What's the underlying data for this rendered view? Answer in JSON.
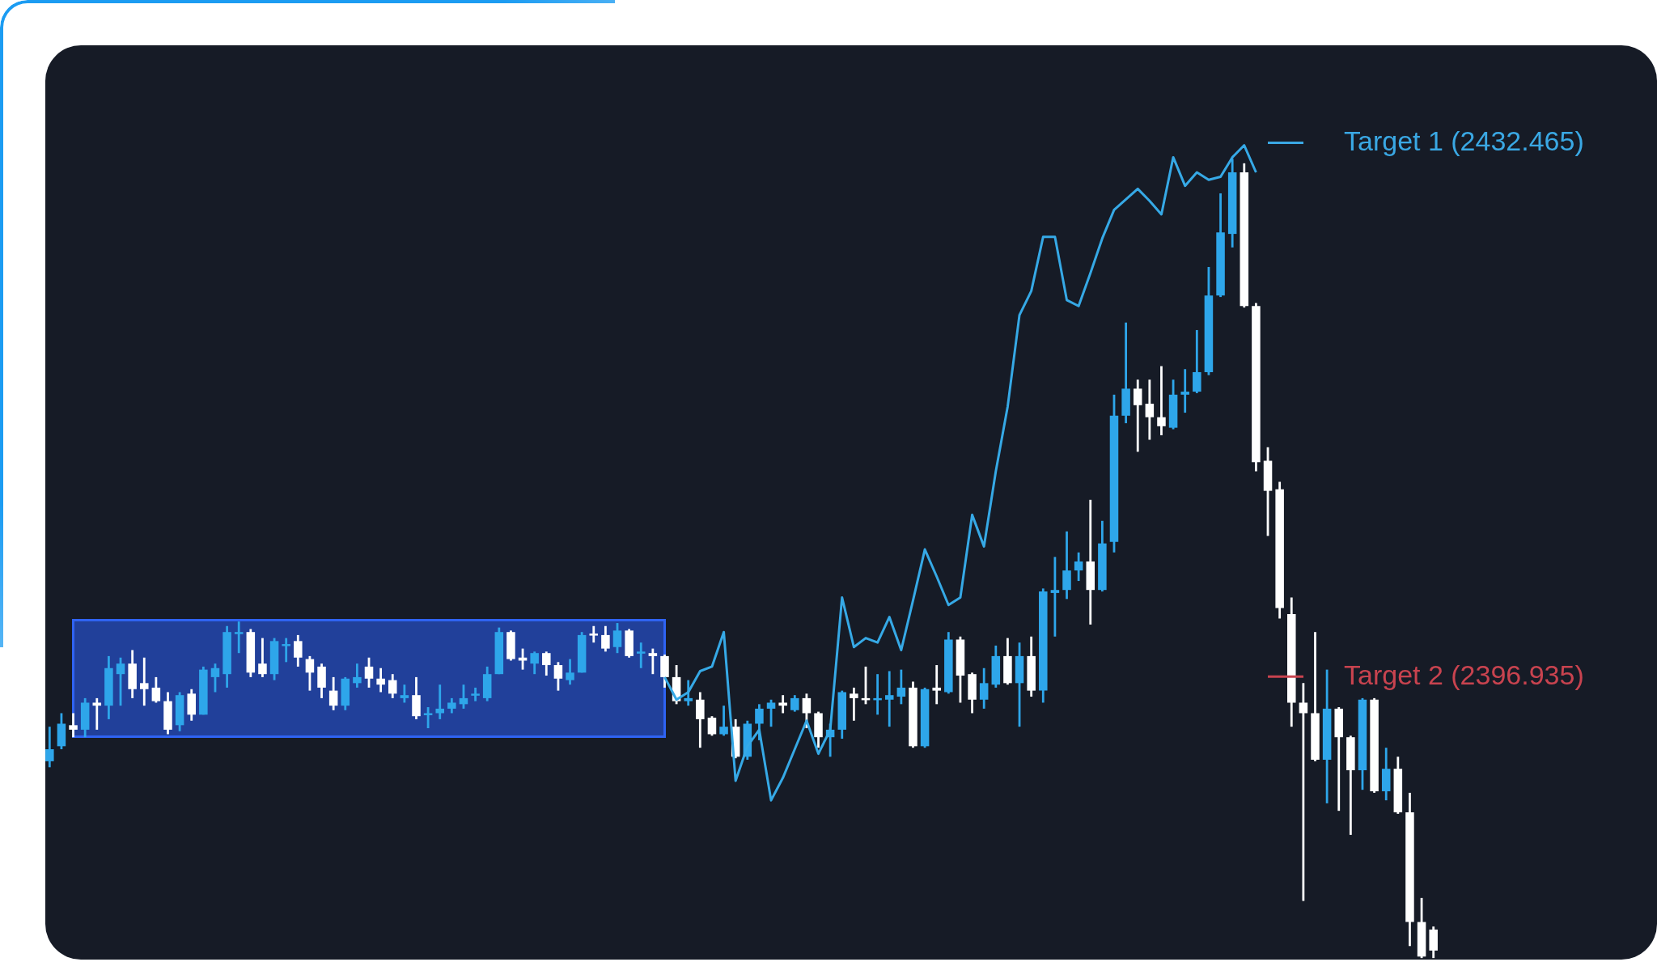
{
  "chart_data": {
    "type": "candlestick",
    "tick_labels": false,
    "categories": [
      null,
      null,
      null,
      null,
      null,
      null,
      null,
      null,
      null,
      null,
      null,
      null,
      null,
      null,
      null,
      null,
      null,
      null,
      null,
      null,
      null,
      null,
      null,
      null,
      null,
      null,
      null,
      null,
      null,
      null,
      null,
      null,
      null,
      null,
      null,
      null,
      null,
      null,
      null,
      null,
      null,
      null,
      null,
      null,
      null,
      null,
      null,
      null,
      null,
      null,
      null,
      null,
      null,
      null,
      null,
      null,
      null,
      null,
      null,
      null,
      null,
      null,
      null,
      null,
      null,
      null,
      null,
      null,
      null,
      null,
      null,
      null,
      null,
      null,
      null,
      null,
      null,
      null,
      null,
      null,
      null,
      null,
      null,
      null,
      null,
      null,
      null,
      null,
      null,
      null,
      null,
      null,
      null,
      null,
      null,
      null,
      null,
      null,
      null,
      null,
      null,
      null,
      null,
      null,
      null,
      null,
      null,
      null,
      null,
      null,
      null,
      null,
      null,
      null,
      null,
      null,
      null,
      null
    ],
    "ylim": [
      2378.1,
      2438.9
    ],
    "ohlc": [
      [
        2391.3,
        2393.6,
        2390.9,
        2392.1
      ],
      [
        2392.3,
        2394.5,
        2392.1,
        2393.8
      ],
      [
        2393.7,
        2394.5,
        2392.9,
        2393.4
      ],
      [
        2393.4,
        2395.5,
        2392.9,
        2395.2
      ],
      [
        2395.2,
        2395.5,
        2393.4,
        2395.0
      ],
      [
        2395.0,
        2398.3,
        2394.1,
        2397.5
      ],
      [
        2397.1,
        2398.2,
        2395.0,
        2397.8
      ],
      [
        2397.8,
        2398.7,
        2395.5,
        2396.1
      ],
      [
        2396.5,
        2398.2,
        2395.0,
        2396.1
      ],
      [
        2396.2,
        2396.9,
        2395.2,
        2395.3
      ],
      [
        2395.3,
        2395.9,
        2393.1,
        2393.4
      ],
      [
        2393.7,
        2395.9,
        2393.3,
        2395.7
      ],
      [
        2395.8,
        2396.1,
        2394.0,
        2394.4
      ],
      [
        2394.4,
        2397.6,
        2394.4,
        2397.4
      ],
      [
        2396.9,
        2397.8,
        2395.9,
        2397.5
      ],
      [
        2397.1,
        2400.3,
        2396.2,
        2399.9
      ],
      [
        2399.8,
        2400.6,
        2398.5,
        2399.9
      ],
      [
        2399.9,
        2400.1,
        2396.9,
        2397.2
      ],
      [
        2397.8,
        2399.5,
        2396.9,
        2397.1
      ],
      [
        2397.1,
        2399.5,
        2396.7,
        2399.3
      ],
      [
        2399.0,
        2399.5,
        2397.9,
        2399.1
      ],
      [
        2399.3,
        2399.7,
        2397.6,
        2398.2
      ],
      [
        2398.1,
        2398.3,
        2396.0,
        2397.2
      ],
      [
        2397.6,
        2397.8,
        2395.5,
        2396.2
      ],
      [
        2396.0,
        2396.9,
        2394.7,
        2395.0
      ],
      [
        2395.0,
        2396.9,
        2394.7,
        2396.8
      ],
      [
        2396.5,
        2397.8,
        2396.2,
        2396.9
      ],
      [
        2397.6,
        2398.2,
        2396.2,
        2396.8
      ],
      [
        2396.8,
        2397.5,
        2395.9,
        2396.4
      ],
      [
        2396.7,
        2397.1,
        2395.5,
        2395.8
      ],
      [
        2395.5,
        2396.4,
        2395.2,
        2395.7
      ],
      [
        2395.7,
        2396.9,
        2394.1,
        2394.3
      ],
      [
        2394.4,
        2394.9,
        2393.5,
        2394.5
      ],
      [
        2394.5,
        2396.4,
        2394.1,
        2394.8
      ],
      [
        2394.8,
        2395.5,
        2394.5,
        2395.2
      ],
      [
        2395.1,
        2396.4,
        2394.8,
        2395.5
      ],
      [
        2395.7,
        2396.2,
        2395.3,
        2395.8
      ],
      [
        2395.5,
        2397.6,
        2395.3,
        2397.1
      ],
      [
        2397.1,
        2400.2,
        2397.1,
        2399.9
      ],
      [
        2399.9,
        2400.0,
        2398.0,
        2398.1
      ],
      [
        2398.2,
        2398.8,
        2397.4,
        2398.0
      ],
      [
        2397.8,
        2398.6,
        2397.1,
        2398.5
      ],
      [
        2398.5,
        2398.6,
        2397.0,
        2397.7
      ],
      [
        2397.7,
        2397.9,
        2396.0,
        2396.8
      ],
      [
        2396.7,
        2398.1,
        2396.4,
        2397.2
      ],
      [
        2397.2,
        2399.9,
        2397.2,
        2399.7
      ],
      [
        2399.8,
        2400.3,
        2399.2,
        2399.7
      ],
      [
        2399.7,
        2400.3,
        2398.6,
        2398.8
      ],
      [
        2398.9,
        2400.5,
        2398.5,
        2400.0
      ],
      [
        2400.0,
        2400.1,
        2398.2,
        2398.3
      ],
      [
        2398.5,
        2399.2,
        2397.5,
        2398.6
      ],
      [
        2398.5,
        2398.8,
        2397.1,
        2398.3
      ],
      [
        2398.3,
        2398.4,
        2396.2,
        2396.9
      ],
      [
        2396.9,
        2397.7,
        2395.1,
        2395.3
      ],
      [
        2395.3,
        2396.7,
        2395.0,
        2395.5
      ],
      [
        2395.4,
        2395.9,
        2392.2,
        2394.1
      ],
      [
        2394.2,
        2394.3,
        2393.0,
        2393.1
      ],
      [
        2393.1,
        2395.0,
        2393.0,
        2393.6
      ],
      [
        2393.6,
        2394.1,
        2391.5,
        2391.6
      ],
      [
        2391.6,
        2394.0,
        2391.4,
        2393.8
      ],
      [
        2393.8,
        2395.1,
        2392.7,
        2394.8
      ],
      [
        2394.8,
        2395.4,
        2393.6,
        2395.2
      ],
      [
        2395.2,
        2395.7,
        2394.5,
        2395.0
      ],
      [
        2394.7,
        2395.7,
        2394.6,
        2395.5
      ],
      [
        2395.5,
        2395.8,
        2393.5,
        2394.5
      ],
      [
        2394.5,
        2394.6,
        2392.2,
        2392.9
      ],
      [
        2392.9,
        2393.8,
        2391.6,
        2393.4
      ],
      [
        2393.4,
        2396.0,
        2392.8,
        2395.9
      ],
      [
        2395.8,
        2396.2,
        2394.0,
        2395.5
      ],
      [
        2395.5,
        2397.6,
        2395.1,
        2395.4
      ],
      [
        2395.4,
        2397.1,
        2394.4,
        2395.5
      ],
      [
        2395.4,
        2397.3,
        2393.6,
        2395.7
      ],
      [
        2395.6,
        2397.4,
        2395.1,
        2396.2
      ],
      [
        2396.2,
        2396.6,
        2392.2,
        2392.3
      ],
      [
        2392.3,
        2396.2,
        2392.2,
        2396.1
      ],
      [
        2396.2,
        2397.7,
        2395.1,
        2396.0
      ],
      [
        2395.9,
        2399.9,
        2395.8,
        2399.4
      ],
      [
        2399.4,
        2399.6,
        2395.2,
        2397.0
      ],
      [
        2397.1,
        2397.2,
        2394.5,
        2395.4
      ],
      [
        2395.4,
        2397.5,
        2394.8,
        2396.5
      ],
      [
        2396.4,
        2399.0,
        2396.2,
        2398.3
      ],
      [
        2398.3,
        2399.5,
        2396.4,
        2396.5
      ],
      [
        2396.5,
        2399.2,
        2393.6,
        2398.3
      ],
      [
        2398.3,
        2399.6,
        2395.6,
        2396.0
      ],
      [
        2396.0,
        2402.8,
        2395.2,
        2402.6
      ],
      [
        2402.5,
        2404.9,
        2399.6,
        2402.7
      ],
      [
        2402.7,
        2406.6,
        2402.1,
        2404.0
      ],
      [
        2404.0,
        2405.2,
        2403.3,
        2404.6
      ],
      [
        2404.6,
        2408.7,
        2400.4,
        2402.7
      ],
      [
        2402.7,
        2407.3,
        2402.6,
        2405.8
      ],
      [
        2405.9,
        2415.7,
        2405.2,
        2414.3
      ],
      [
        2414.3,
        2420.5,
        2413.8,
        2416.1
      ],
      [
        2416.1,
        2416.7,
        2411.9,
        2415.0
      ],
      [
        2415.1,
        2416.7,
        2412.7,
        2414.2
      ],
      [
        2414.2,
        2417.6,
        2413.0,
        2413.6
      ],
      [
        2413.5,
        2416.7,
        2413.4,
        2415.7
      ],
      [
        2415.7,
        2417.4,
        2414.5,
        2415.9
      ],
      [
        2415.9,
        2420.0,
        2415.8,
        2417.2
      ],
      [
        2417.2,
        2424.2,
        2417.0,
        2422.3
      ],
      [
        2422.3,
        2429.1,
        2422.2,
        2426.5
      ],
      [
        2426.4,
        2431.4,
        2425.5,
        2430.5
      ],
      [
        2430.5,
        2431.1,
        2421.5,
        2421.6
      ],
      [
        2421.6,
        2421.8,
        2410.6,
        2411.2
      ],
      [
        2411.3,
        2412.2,
        2406.3,
        2409.3
      ],
      [
        2409.4,
        2409.9,
        2400.8,
        2401.5
      ],
      [
        2401.1,
        2402.2,
        2393.6,
        2395.2
      ],
      [
        2395.2,
        2396.5,
        2382.0,
        2394.5
      ],
      [
        2394.5,
        2399.9,
        2391.3,
        2391.4
      ],
      [
        2391.4,
        2397.4,
        2388.5,
        2394.8
      ],
      [
        2394.8,
        2394.9,
        2388.0,
        2392.9
      ],
      [
        2392.9,
        2393.0,
        2386.4,
        2390.7
      ],
      [
        2390.7,
        2395.5,
        2389.4,
        2395.4
      ],
      [
        2395.4,
        2395.5,
        2389.2,
        2389.3
      ],
      [
        2389.3,
        2392.2,
        2388.7,
        2390.8
      ],
      [
        2390.8,
        2391.6,
        2387.8,
        2387.9
      ],
      [
        2387.9,
        2389.2,
        2379.0,
        2380.6
      ],
      [
        2380.6,
        2382.2,
        2378.2,
        2378.3
      ],
      [
        2380.1,
        2380.3,
        2378.2,
        2378.7
      ]
    ],
    "colors": [
      "#2ea6ea",
      "#2ea6ea",
      "#ffffff",
      "#2ea6ea",
      "#ffffff",
      "#2ea6ea",
      "#2ea6ea",
      "#ffffff",
      "#ffffff",
      "#ffffff",
      "#ffffff",
      "#2ea6ea",
      "#ffffff",
      "#2ea6ea",
      "#2ea6ea",
      "#2ea6ea",
      "#2ea6ea",
      "#ffffff",
      "#ffffff",
      "#2ea6ea",
      "#2ea6ea",
      "#ffffff",
      "#ffffff",
      "#ffffff",
      "#ffffff",
      "#2ea6ea",
      "#2ea6ea",
      "#ffffff",
      "#ffffff",
      "#ffffff",
      "#2ea6ea",
      "#ffffff",
      "#2ea6ea",
      "#2ea6ea",
      "#2ea6ea",
      "#2ea6ea",
      "#2ea6ea",
      "#2ea6ea",
      "#2ea6ea",
      "#ffffff",
      "#ffffff",
      "#2ea6ea",
      "#ffffff",
      "#ffffff",
      "#2ea6ea",
      "#2ea6ea",
      "#ffffff",
      "#ffffff",
      "#2ea6ea",
      "#ffffff",
      "#2ea6ea",
      "#ffffff",
      "#ffffff",
      "#ffffff",
      "#2ea6ea",
      "#ffffff",
      "#ffffff",
      "#2ea6ea",
      "#ffffff",
      "#2ea6ea",
      "#2ea6ea",
      "#2ea6ea",
      "#ffffff",
      "#2ea6ea",
      "#ffffff",
      "#ffffff",
      "#2ea6ea",
      "#2ea6ea",
      "#ffffff",
      "#ffffff",
      "#2ea6ea",
      "#2ea6ea",
      "#2ea6ea",
      "#ffffff",
      "#2ea6ea",
      "#ffffff",
      "#2ea6ea",
      "#ffffff",
      "#ffffff",
      "#2ea6ea",
      "#2ea6ea",
      "#ffffff",
      "#2ea6ea",
      "#ffffff",
      "#2ea6ea",
      "#2ea6ea",
      "#2ea6ea",
      "#2ea6ea",
      "#ffffff",
      "#2ea6ea",
      "#2ea6ea",
      "#2ea6ea",
      "#ffffff",
      "#ffffff",
      "#ffffff",
      "#2ea6ea",
      "#2ea6ea",
      "#2ea6ea",
      "#2ea6ea",
      "#2ea6ea",
      "#2ea6ea",
      "#ffffff",
      "#ffffff",
      "#ffffff",
      "#ffffff",
      "#ffffff",
      "#ffffff",
      "#ffffff",
      "#2ea6ea",
      "#ffffff",
      "#ffffff",
      "#2ea6ea",
      "#ffffff",
      "#2ea6ea",
      "#ffffff",
      "#ffffff",
      "#ffffff",
      "#ffffff"
    ],
    "series": [
      {
        "type": "line",
        "color": "#36a9e6",
        "values": [
          null,
          null,
          null,
          null,
          null,
          null,
          null,
          null,
          null,
          null,
          null,
          null,
          null,
          null,
          null,
          null,
          null,
          null,
          null,
          null,
          null,
          null,
          null,
          null,
          null,
          null,
          null,
          null,
          null,
          null,
          null,
          null,
          null,
          null,
          null,
          null,
          null,
          null,
          null,
          null,
          null,
          null,
          null,
          null,
          null,
          null,
          null,
          null,
          null,
          null,
          null,
          null,
          2396.9,
          2395.4,
          2395.9,
          2397.3,
          2397.6,
          2399.9,
          2390.0,
          2392.3,
          2393.4,
          2388.7,
          2390.2,
          2392.1,
          2394.0,
          2391.8,
          2393.4,
          2402.2,
          2398.9,
          2399.5,
          2399.2,
          2400.9,
          2398.7,
          2402.0,
          2405.4,
          2403.6,
          2401.7,
          2402.2,
          2407.7,
          2405.6,
          2410.6,
          2414.9,
          2421.0,
          2422.6,
          2426.2,
          2426.2,
          2422.0,
          2421.6,
          2423.8,
          2426.1,
          2428.0,
          2428.7,
          2429.4,
          2428.6,
          2427.7,
          2431.5,
          2429.6,
          2430.5,
          2430.0,
          2430.2,
          2431.5,
          2432.3,
          2430.5,
          null,
          null,
          null,
          null,
          null,
          null,
          null,
          null,
          null,
          null,
          null,
          null,
          null,
          null,
          null
        ]
      }
    ],
    "ref_lines": [
      {
        "axis": "y",
        "value": 2432.465,
        "label": "Target 1 (2432.465)",
        "color": "#3aa8e4"
      },
      {
        "axis": "y",
        "value": 2396.935,
        "label": "Target 2 (2396.935)",
        "color": "#c8434f"
      }
    ]
  }
}
